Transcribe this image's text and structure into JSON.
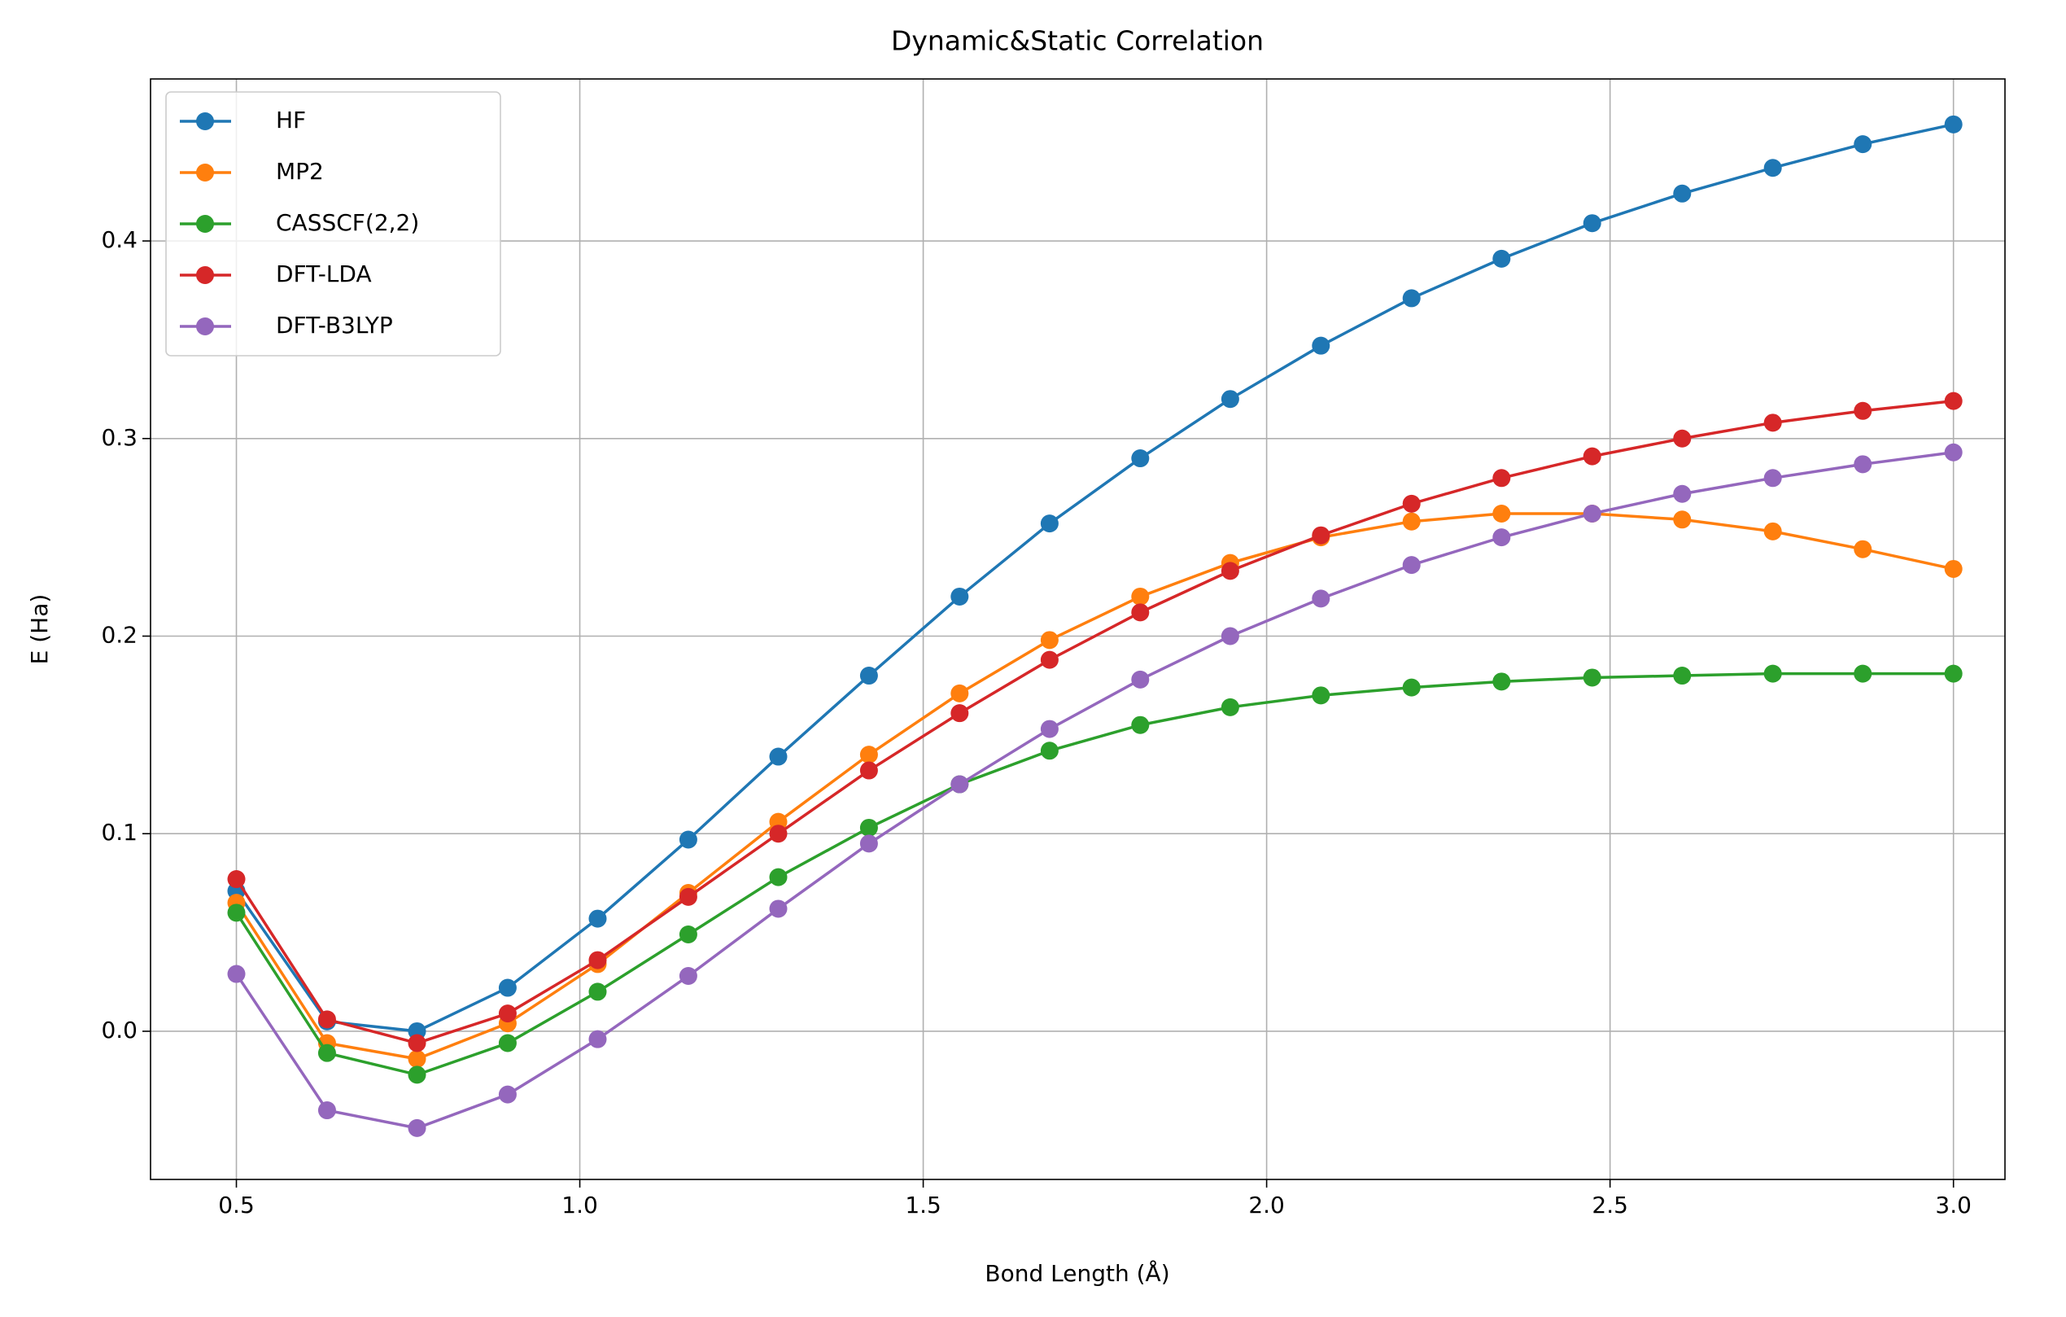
{
  "chart_data": {
    "type": "line",
    "title": "Dynamic&Static Correlation",
    "x_label": "Bond Length (Å)",
    "y_label": "E (Ha)",
    "x": [
      0.5,
      0.632,
      0.763,
      0.895,
      1.026,
      1.158,
      1.289,
      1.421,
      1.553,
      1.684,
      1.816,
      1.947,
      2.079,
      2.211,
      2.342,
      2.474,
      2.605,
      2.737,
      2.868,
      3.0
    ],
    "series": [
      {
        "name": "HF",
        "color": "#1f77b4",
        "values": [
          0.071,
          0.005,
          0.0,
          0.022,
          0.057,
          0.097,
          0.139,
          0.18,
          0.22,
          0.257,
          0.29,
          0.32,
          0.347,
          0.371,
          0.391,
          0.409,
          0.424,
          0.437,
          0.449,
          0.459
        ]
      },
      {
        "name": "MP2",
        "color": "#ff7f0e",
        "values": [
          0.065,
          -0.006,
          -0.014,
          0.004,
          0.034,
          0.07,
          0.106,
          0.14,
          0.171,
          0.198,
          0.22,
          0.237,
          0.25,
          0.258,
          0.262,
          0.262,
          0.259,
          0.253,
          0.244,
          0.234
        ]
      },
      {
        "name": "CASSCF(2,2)",
        "color": "#2ca02c",
        "values": [
          0.06,
          -0.011,
          -0.022,
          -0.006,
          0.02,
          0.049,
          0.078,
          0.103,
          0.125,
          0.142,
          0.155,
          0.164,
          0.17,
          0.174,
          0.177,
          0.179,
          0.18,
          0.181,
          0.181,
          0.181
        ]
      },
      {
        "name": "DFT-LDA",
        "color": "#d62728",
        "values": [
          0.077,
          0.006,
          -0.006,
          0.009,
          0.036,
          0.068,
          0.1,
          0.132,
          0.161,
          0.188,
          0.212,
          0.233,
          0.251,
          0.267,
          0.28,
          0.291,
          0.3,
          0.308,
          0.314,
          0.319
        ]
      },
      {
        "name": "DFT-B3LYP",
        "color": "#9467bd",
        "values": [
          0.029,
          -0.04,
          -0.049,
          -0.032,
          -0.004,
          0.028,
          0.062,
          0.095,
          0.125,
          0.153,
          0.178,
          0.2,
          0.219,
          0.236,
          0.25,
          0.262,
          0.272,
          0.28,
          0.287,
          0.293
        ]
      }
    ],
    "xlim": [
      0.375,
      3.075
    ],
    "ylim": [
      -0.075,
      0.482
    ],
    "xticks": [
      0.5,
      {
        "value": 1,
        "label": "1.0"
      },
      1.5,
      {
        "value": 2,
        "label": "2.0"
      },
      2.5,
      {
        "value": 3,
        "label": "3.0"
      }
    ],
    "yticks": [
      {
        "value": 0,
        "label": "0.0"
      },
      0.1,
      0.2,
      0.3,
      0.4
    ],
    "grid": true,
    "legend": "upper left"
  }
}
